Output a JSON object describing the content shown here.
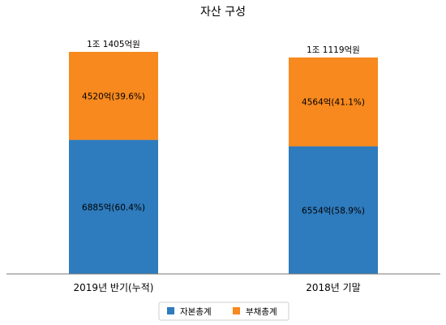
{
  "chart_data": {
    "type": "bar",
    "stacked": true,
    "title": "자산 구성",
    "categories": [
      "2019년 반기(누적)",
      "2018년 기말"
    ],
    "totals": [
      "1조 1405억원",
      "1조 1119억원"
    ],
    "series": [
      {
        "name": "자본총계",
        "color": "#2e7bbd",
        "values": [
          6885,
          6554
        ],
        "labels": [
          "6885억(60.4%)",
          "6554억(58.9%)"
        ]
      },
      {
        "name": "부채총계",
        "color": "#f7891e",
        "values": [
          4520,
          4564
        ],
        "labels": [
          "4520억(39.6%)",
          "4564억(41.1%)"
        ]
      }
    ],
    "legend_position": "bottom-center",
    "grid": false
  }
}
